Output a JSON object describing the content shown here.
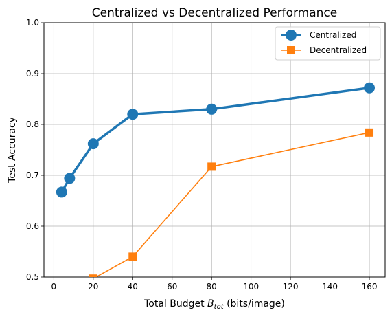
{
  "chart_data": {
    "type": "line",
    "title": "Centralized vs Decentralized Performance",
    "xlabel": {
      "prefix": "Total Budget ",
      "symbol": "B",
      "subscript": "tot",
      "suffix": " (bits/image)"
    },
    "ylabel": "Test Accuracy",
    "xlim": [
      -5,
      168
    ],
    "ylim": [
      0.5,
      1.0
    ],
    "xticks": [
      0,
      20,
      40,
      60,
      80,
      100,
      120,
      140,
      160
    ],
    "yticks": [
      0.5,
      0.6,
      0.7,
      0.8,
      0.9,
      1.0
    ],
    "xtick_labels": [
      "0",
      "20",
      "40",
      "60",
      "80",
      "100",
      "120",
      "140",
      "160"
    ],
    "ytick_labels": [
      "0.5",
      "0.6",
      "0.7",
      "0.8",
      "0.9",
      "1.0"
    ],
    "grid": true,
    "legend_position": "top-right",
    "series": [
      {
        "name": "Centralized",
        "color": "#1f77b4",
        "marker": "circle",
        "x": [
          4,
          8,
          20,
          40,
          80,
          160
        ],
        "y": [
          0.667,
          0.694,
          0.762,
          0.82,
          0.83,
          0.872
        ]
      },
      {
        "name": "Decentralized",
        "color": "#ff7f0e",
        "marker": "square",
        "x": [
          20,
          40,
          80,
          160
        ],
        "y": [
          0.497,
          0.54,
          0.717,
          0.784
        ]
      }
    ]
  }
}
